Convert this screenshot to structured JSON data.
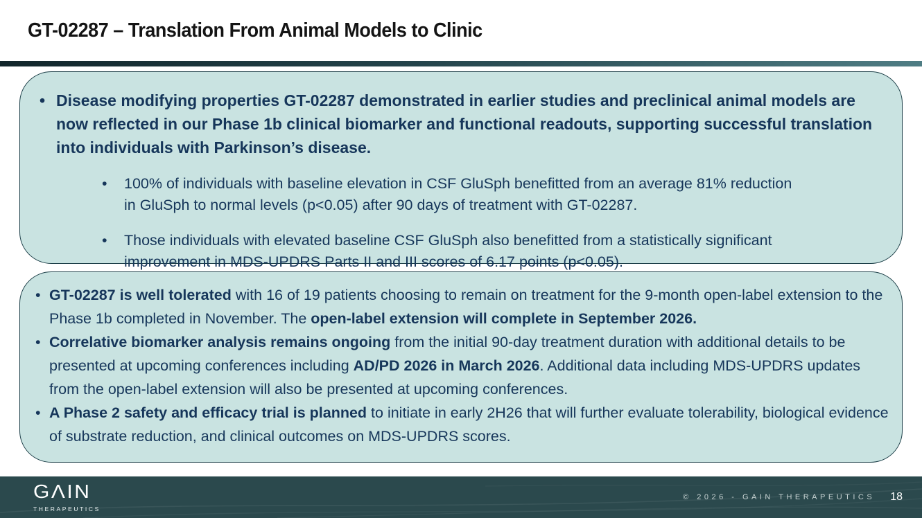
{
  "slide": {
    "title": "GT-02287 – Translation From Animal Models to Clinic",
    "bullet_char": "•",
    "page_number": "18",
    "copyright": "© 2026 - GAIN THERAPEUTICS",
    "logo": {
      "wordmark": "GΛIN",
      "subtext": "THERAPEUTICS"
    }
  },
  "colors": {
    "box_fill": "#c9e3e1",
    "box_border": "#1e4049",
    "body_text": "#16365a",
    "title_text": "#141414",
    "title_rule_left": "#12262b",
    "title_rule_right": "#4f7d84",
    "footer_background": "#2b494d",
    "footer_text": "#c7d2d2"
  },
  "box1": {
    "main": [
      {
        "t": "Disease modifying properties GT-02287 demonstrated in earlier studies and preclinical animal models are now reflected in our Phase 1b clinical biomarker and functional readouts, supporting successful translation into individuals with Parkinson’s disease.",
        "b": true
      }
    ],
    "subs": [
      [
        {
          "t": "100% of individuals with baseline elevation in CSF GluSph benefitted from an average 81% reduction in GluSph to normal levels (p<0.05) after 90 days of treatment with GT-02287.",
          "b": false
        }
      ],
      [
        {
          "t": "Those individuals with elevated baseline CSF GluSph also benefitted from a statistically significant improvement in MDS-UPDRS Parts II and III scores of 6.17 points (p<0.05).",
          "b": false
        }
      ]
    ]
  },
  "box2": {
    "bullets": [
      [
        {
          "t": "GT-02287 is well tolerated",
          "b": true
        },
        {
          "t": " with 16 of 19 patients choosing to remain on treatment for the 9-month open-label extension to the Phase 1b completed in November. The ",
          "b": false
        },
        {
          "t": "open-label extension will complete in September 2026.",
          "b": true
        }
      ],
      [
        {
          "t": "Correlative biomarker analysis remains ongoing",
          "b": true
        },
        {
          "t": " from the initial 90-day treatment duration with additional details to be presented at upcoming conferences including ",
          "b": false
        },
        {
          "t": "AD/PD 2026 in March 2026",
          "b": true
        },
        {
          "t": ". Additional data including MDS-UPDRS updates from the open-label extension will also be presented at upcoming conferences.",
          "b": false
        }
      ],
      [
        {
          "t": "A Phase 2 safety and efficacy trial is planned",
          "b": true
        },
        {
          "t": " to initiate in early 2H26 that will further evaluate tolerability, biological evidence of substrate reduction, and clinical outcomes on MDS-UPDRS scores.",
          "b": false
        }
      ]
    ]
  }
}
